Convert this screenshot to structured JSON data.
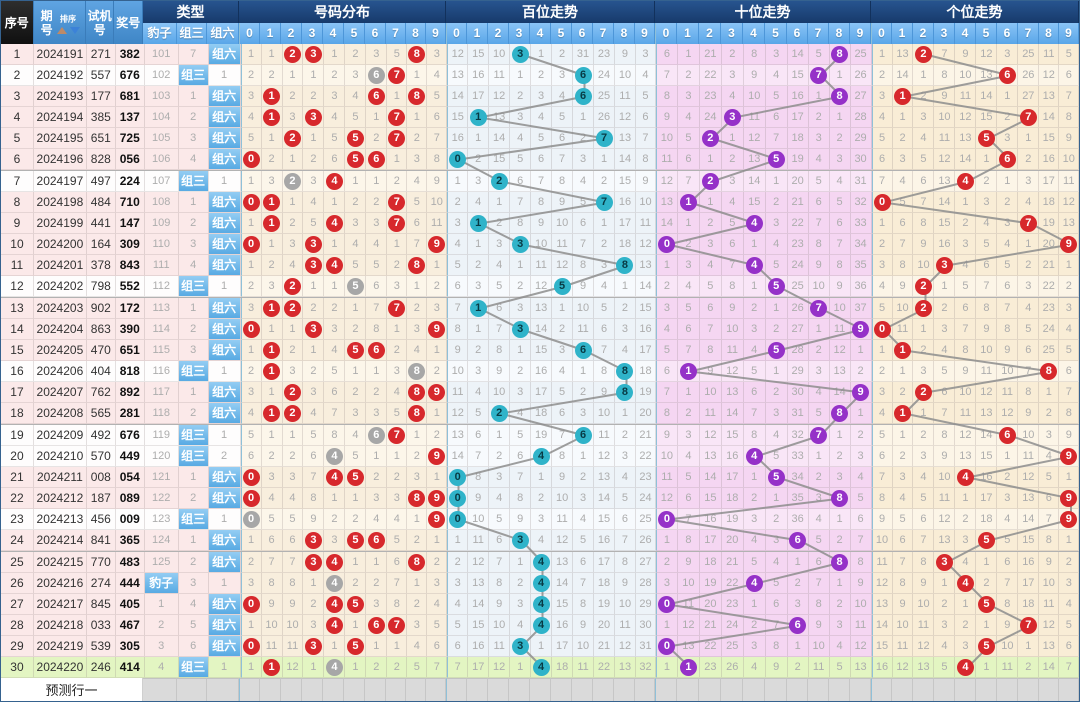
{
  "header": {
    "seq": "序号",
    "period": "期号",
    "sort": "排序",
    "test": "试机号",
    "prize": "奖号",
    "type": "类型",
    "type_cols": [
      "豹子",
      "组三",
      "组六"
    ],
    "digits": [
      "0",
      "1",
      "2",
      "3",
      "4",
      "5",
      "6",
      "7",
      "8",
      "9"
    ],
    "sections": [
      {
        "key": "dist",
        "title": "号码分布"
      },
      {
        "key": "hund",
        "title": "百位走势"
      },
      {
        "key": "tens",
        "title": "十位走势"
      },
      {
        "key": "unit",
        "title": "个位走势"
      }
    ]
  },
  "footer": {
    "label": "预测行一"
  },
  "colors": {
    "header_blue": "#4a90d4",
    "header_navy": "#1b3f74",
    "seq_black": "#161616",
    "subheader_blue": "#6fb4f2",
    "type_active_blue": "#58aae3",
    "green_row": "#e3f5c2",
    "row_pink": "#fbe9e9",
    "dist_bg": "#f8eedd",
    "hundreds_bg": "#edf3f8",
    "tens_bg": "#f5d6f2",
    "units_bg": "#f9edd6",
    "circle_red": "#d7282c",
    "circle_gray": "#a7a7a7",
    "circle_teal": "#2fb3c9",
    "circle_purple": "#9531c8",
    "line_gray": "#8d8d8d",
    "footer_gray": "#dadada",
    "sort_up_arrow": "#bd8a68",
    "sort_down_arrow": "#3c82d8"
  },
  "chart_data": {
    "type": "table",
    "rows": [
      {
        "seq": 1,
        "period": "2024191",
        "test": "271",
        "prize": "382",
        "type": "组六"
      },
      {
        "seq": 2,
        "period": "2024192",
        "test": "557",
        "prize": "676",
        "type": "组三"
      },
      {
        "seq": 3,
        "period": "2024193",
        "test": "177",
        "prize": "681",
        "type": "组六"
      },
      {
        "seq": 4,
        "period": "2024194",
        "test": "385",
        "prize": "137",
        "type": "组六"
      },
      {
        "seq": 5,
        "period": "2024195",
        "test": "651",
        "prize": "725",
        "type": "组六"
      },
      {
        "seq": 6,
        "period": "2024196",
        "test": "828",
        "prize": "056",
        "type": "组六"
      },
      {
        "seq": 7,
        "period": "2024197",
        "test": "497",
        "prize": "224",
        "type": "组三"
      },
      {
        "seq": 8,
        "period": "2024198",
        "test": "484",
        "prize": "710",
        "type": "组六"
      },
      {
        "seq": 9,
        "period": "2024199",
        "test": "441",
        "prize": "147",
        "type": "组六"
      },
      {
        "seq": 10,
        "period": "2024200",
        "test": "164",
        "prize": "309",
        "type": "组六"
      },
      {
        "seq": 11,
        "period": "2024201",
        "test": "378",
        "prize": "843",
        "type": "组六"
      },
      {
        "seq": 12,
        "period": "2024202",
        "test": "798",
        "prize": "552",
        "type": "组三"
      },
      {
        "seq": 13,
        "period": "2024203",
        "test": "902",
        "prize": "172",
        "type": "组六"
      },
      {
        "seq": 14,
        "period": "2024204",
        "test": "863",
        "prize": "390",
        "type": "组六"
      },
      {
        "seq": 15,
        "period": "2024205",
        "test": "470",
        "prize": "651",
        "type": "组六"
      },
      {
        "seq": 16,
        "period": "2024206",
        "test": "404",
        "prize": "818",
        "type": "组三"
      },
      {
        "seq": 17,
        "period": "2024207",
        "test": "762",
        "prize": "892",
        "type": "组六"
      },
      {
        "seq": 18,
        "period": "2024208",
        "test": "565",
        "prize": "281",
        "type": "组六"
      },
      {
        "seq": 19,
        "period": "2024209",
        "test": "492",
        "prize": "676",
        "type": "组三"
      },
      {
        "seq": 20,
        "period": "2024210",
        "test": "570",
        "prize": "449",
        "type": "组三"
      },
      {
        "seq": 21,
        "period": "2024211",
        "test": "008",
        "prize": "054",
        "type": "组六"
      },
      {
        "seq": 22,
        "period": "2024212",
        "test": "187",
        "prize": "089",
        "type": "组六"
      },
      {
        "seq": 23,
        "period": "2024213",
        "test": "456",
        "prize": "009",
        "type": "组三"
      },
      {
        "seq": 24,
        "period": "2024214",
        "test": "841",
        "prize": "365",
        "type": "组六"
      },
      {
        "seq": 25,
        "period": "2024215",
        "test": "770",
        "prize": "483",
        "type": "组六"
      },
      {
        "seq": 26,
        "period": "2024216",
        "test": "274",
        "prize": "444",
        "type": "豹子"
      },
      {
        "seq": 27,
        "period": "2024217",
        "test": "845",
        "prize": "405",
        "type": "组六"
      },
      {
        "seq": 28,
        "period": "2024218",
        "test": "033",
        "prize": "467",
        "type": "组六"
      },
      {
        "seq": 29,
        "period": "2024219",
        "test": "539",
        "prize": "305",
        "type": "组六"
      },
      {
        "seq": 30,
        "period": "2024220",
        "test": "246",
        "prize": "414",
        "type": "组三"
      }
    ],
    "first_row_miss": {
      "type_cols": [
        101,
        7,
        null
      ],
      "dist": [
        1,
        1,
        null,
        null,
        1,
        2,
        3,
        5,
        null,
        3
      ],
      "hund": [
        12,
        15,
        10,
        null,
        1,
        2,
        31,
        23,
        9,
        3
      ],
      "tens": [
        6,
        1,
        21,
        2,
        8,
        3,
        14,
        5,
        null,
        25
      ],
      "unit": [
        1,
        13,
        null,
        7,
        9,
        12,
        3,
        25,
        11,
        5
      ]
    },
    "notes_rule": "cells show periods since digit last appeared; circled cell = digit drawn this period; gray circle in 号码分布 = digit repeated within prize number"
  }
}
